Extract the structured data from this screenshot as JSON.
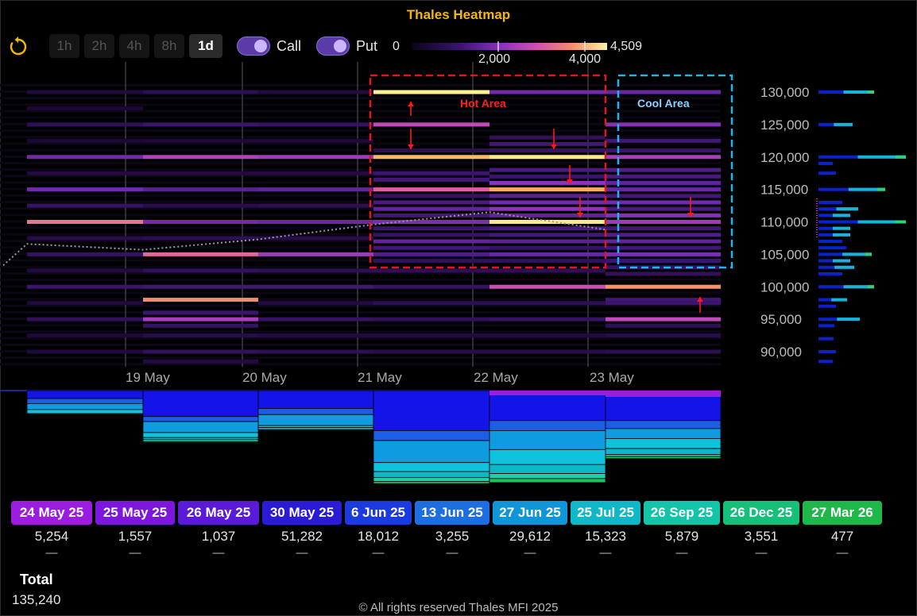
{
  "title": "Thales Heatmap",
  "controls": {
    "timeframes": [
      {
        "label": "1h",
        "active": false
      },
      {
        "label": "2h",
        "active": false
      },
      {
        "label": "4h",
        "active": false
      },
      {
        "label": "8h",
        "active": false
      },
      {
        "label": "1d",
        "active": true
      }
    ],
    "call_label": "Call",
    "put_label": "Put",
    "call_on": true,
    "put_on": true
  },
  "colorscale": {
    "min_label": "0",
    "max_label": "4,509",
    "ticks": [
      "2,000",
      "4,000"
    ],
    "min": 0,
    "max": 4509
  },
  "annotations": {
    "hot": "Hot Area",
    "cool": "Cool Area"
  },
  "chart_data": {
    "type": "heatmap",
    "title": "Thales Heatmap",
    "x_dates": [
      "19 May",
      "20 May",
      "21 May",
      "22 May",
      "23 May"
    ],
    "y_ticks": [
      "130,000",
      "125,000",
      "120,000",
      "115,000",
      "110,000",
      "105,000",
      "100,000",
      "95,000",
      "90,000"
    ],
    "ylim": [
      87000,
      132000
    ],
    "price_line": [
      [
        0,
        103300
      ],
      [
        1,
        106600
      ],
      [
        2,
        105700
      ],
      [
        3,
        107300
      ],
      [
        4,
        109600
      ],
      [
        5,
        111500
      ],
      [
        6,
        108800
      ]
    ],
    "columns": [
      {
        "index": 0,
        "cells": [
          [
            130000,
            250
          ],
          [
            127500,
            120
          ],
          [
            125000,
            550
          ],
          [
            122500,
            150
          ],
          [
            120000,
            1500
          ],
          [
            117500,
            300
          ],
          [
            115000,
            1500
          ],
          [
            112500,
            700
          ],
          [
            110000,
            3100
          ],
          [
            107500,
            400
          ],
          [
            105000,
            700
          ],
          [
            102500,
            300
          ],
          [
            100000,
            800
          ],
          [
            97500,
            250
          ],
          [
            95000,
            600
          ],
          [
            92500,
            200
          ],
          [
            90000,
            250
          ]
        ]
      },
      {
        "index": 1,
        "cells": [
          [
            130000,
            500
          ],
          [
            125000,
            800
          ],
          [
            122500,
            200
          ],
          [
            120000,
            2200
          ],
          [
            117500,
            300
          ],
          [
            115000,
            1200
          ],
          [
            112500,
            400
          ],
          [
            110000,
            1500
          ],
          [
            107500,
            500
          ],
          [
            105000,
            2900
          ],
          [
            102500,
            600
          ],
          [
            100000,
            900
          ],
          [
            98000,
            3400
          ],
          [
            96000,
            800
          ],
          [
            95000,
            2100
          ],
          [
            94000,
            700
          ],
          [
            92500,
            400
          ],
          [
            90000,
            600
          ],
          [
            88500,
            300
          ]
        ]
      },
      {
        "index": 2,
        "cells": [
          [
            130000,
            300
          ],
          [
            125000,
            700
          ],
          [
            122500,
            200
          ],
          [
            120000,
            2000
          ],
          [
            117500,
            300
          ],
          [
            115000,
            1300
          ],
          [
            112500,
            500
          ],
          [
            110000,
            1400
          ],
          [
            107500,
            400
          ],
          [
            105000,
            2000
          ],
          [
            102500,
            500
          ],
          [
            100000,
            900
          ],
          [
            97500,
            300
          ],
          [
            95000,
            700
          ],
          [
            92500,
            300
          ],
          [
            90000,
            500
          ]
        ]
      },
      {
        "index": 3,
        "cells": [
          [
            130000,
            4500
          ],
          [
            125000,
            2400
          ],
          [
            121000,
            500
          ],
          [
            120000,
            3900
          ],
          [
            117500,
            800
          ],
          [
            116500,
            900
          ],
          [
            115000,
            2800
          ],
          [
            114000,
            700
          ],
          [
            113000,
            1000
          ],
          [
            112000,
            1300
          ],
          [
            111000,
            900
          ],
          [
            110000,
            1600
          ],
          [
            109000,
            800
          ],
          [
            108000,
            700
          ],
          [
            107000,
            1300
          ],
          [
            106000,
            900
          ],
          [
            105000,
            1100
          ],
          [
            104000,
            600
          ],
          [
            102500,
            500
          ],
          [
            100000,
            700
          ],
          [
            97500,
            500
          ],
          [
            95000,
            600
          ],
          [
            92500,
            300
          ],
          [
            90000,
            400
          ]
        ]
      },
      {
        "index": 4,
        "cells": [
          [
            130000,
            1500
          ],
          [
            123000,
            600
          ],
          [
            122000,
            900
          ],
          [
            121000,
            700
          ],
          [
            120000,
            4400
          ],
          [
            118000,
            1000
          ],
          [
            117000,
            800
          ],
          [
            116000,
            1800
          ],
          [
            115000,
            3800
          ],
          [
            114000,
            1200
          ],
          [
            113000,
            1500
          ],
          [
            112000,
            1800
          ],
          [
            111000,
            1300
          ],
          [
            110000,
            4400
          ],
          [
            109000,
            1000
          ],
          [
            108000,
            900
          ],
          [
            107000,
            1200
          ],
          [
            106000,
            700
          ],
          [
            105000,
            1400
          ],
          [
            104000,
            600
          ],
          [
            102500,
            500
          ],
          [
            100000,
            2500
          ],
          [
            97500,
            500
          ],
          [
            95000,
            700
          ],
          [
            92500,
            300
          ],
          [
            90000,
            400
          ]
        ]
      },
      {
        "index": 5,
        "cells": [
          [
            130000,
            1400
          ],
          [
            125000,
            1700
          ],
          [
            122500,
            900
          ],
          [
            121000,
            800
          ],
          [
            120000,
            2100
          ],
          [
            118000,
            1100
          ],
          [
            117000,
            1000
          ],
          [
            116000,
            1300
          ],
          [
            115000,
            1400
          ],
          [
            114000,
            900
          ],
          [
            113000,
            1500
          ],
          [
            112000,
            1000
          ],
          [
            111000,
            1700
          ],
          [
            110000,
            2000
          ],
          [
            109000,
            900
          ],
          [
            108000,
            1100
          ],
          [
            107000,
            1300
          ],
          [
            106000,
            900
          ],
          [
            105000,
            1600
          ],
          [
            104000,
            800
          ],
          [
            103000,
            700
          ],
          [
            102000,
            600
          ],
          [
            100000,
            3500
          ],
          [
            98000,
            900
          ],
          [
            97500,
            800
          ],
          [
            95000,
            2400
          ],
          [
            94000,
            500
          ],
          [
            92500,
            400
          ],
          [
            90000,
            500
          ]
        ]
      }
    ],
    "side_profile": [
      {
        "strike": 130000,
        "value": 0.6
      },
      {
        "strike": 125000,
        "value": 0.33
      },
      {
        "strike": 120000,
        "value": 1.0
      },
      {
        "strike": 119000,
        "value": 0.08
      },
      {
        "strike": 117500,
        "value": 0.12
      },
      {
        "strike": 115000,
        "value": 0.74
      },
      {
        "strike": 113000,
        "value": 0.2
      },
      {
        "strike": 112000,
        "value": 0.4
      },
      {
        "strike": 111000,
        "value": 0.3
      },
      {
        "strike": 110000,
        "value": 1.0
      },
      {
        "strike": 109000,
        "value": 0.3
      },
      {
        "strike": 108000,
        "value": 0.3
      },
      {
        "strike": 107000,
        "value": 0.2
      },
      {
        "strike": 106000,
        "value": 0.25
      },
      {
        "strike": 105000,
        "value": 0.57
      },
      {
        "strike": 104000,
        "value": 0.3
      },
      {
        "strike": 103000,
        "value": 0.35
      },
      {
        "strike": 102000,
        "value": 0.2
      },
      {
        "strike": 100000,
        "value": 0.6
      },
      {
        "strike": 98000,
        "value": 0.26
      },
      {
        "strike": 97000,
        "value": 0.12
      },
      {
        "strike": 95000,
        "value": 0.42
      },
      {
        "strike": 94000,
        "value": 0.1
      },
      {
        "strike": 92000,
        "value": 0.09
      },
      {
        "strike": 90000,
        "value": 0.12
      },
      {
        "strike": 88500,
        "value": 0.08
      }
    ],
    "bottom_segments": {
      "colors": [
        "#1414e8",
        "#1e5ee6",
        "#0e9be0",
        "#0ec4dc",
        "#10b6c8",
        "#1fd0a6",
        "#22c25a"
      ],
      "columns": [
        [
          0.08,
          0.05,
          0.06,
          0.04
        ],
        [
          0.26,
          0.05,
          0.11,
          0.05,
          0.02,
          0.02,
          0.01
        ],
        [
          0.18,
          0.06,
          0.11,
          0.02,
          0.02
        ],
        [
          0.4,
          0.1,
          0.22,
          0.09,
          0.06,
          0.04,
          0.02
        ],
        [
          0.3,
          0.1,
          0.19,
          0.15,
          0.09,
          0.05,
          0.04
        ],
        [
          0.3,
          0.08,
          0.1,
          0.1,
          0.06,
          0.02,
          0.02
        ]
      ]
    }
  },
  "expiries": [
    {
      "label": "24 May 25",
      "value": "5,254",
      "color": "#9b1ee0"
    },
    {
      "label": "25 May 25",
      "value": "1,557",
      "color": "#7d17de"
    },
    {
      "label": "26 May 25",
      "value": "1,037",
      "color": "#5a1ad8"
    },
    {
      "label": "30 May 25",
      "value": "51,282",
      "color": "#2a1cd6"
    },
    {
      "label": "6 Jun 25",
      "value": "18,012",
      "color": "#1b3ae0"
    },
    {
      "label": "13 Jun 25",
      "value": "3,255",
      "color": "#1d6ee0"
    },
    {
      "label": "27 Jun 25",
      "value": "29,612",
      "color": "#0f96d8"
    },
    {
      "label": "25 Jul 25",
      "value": "15,323",
      "color": "#0eb8c8"
    },
    {
      "label": "26 Sep 25",
      "value": "5,879",
      "color": "#12c4a8"
    },
    {
      "label": "26 Dec 25",
      "value": "3,551",
      "color": "#16c07a"
    },
    {
      "label": "27 Mar 26",
      "value": "477",
      "color": "#1eb84a"
    }
  ],
  "dash": "—",
  "total": {
    "label": "Total",
    "value": "135,240"
  },
  "footer": "© All rights reserved Thales MFI 2025"
}
